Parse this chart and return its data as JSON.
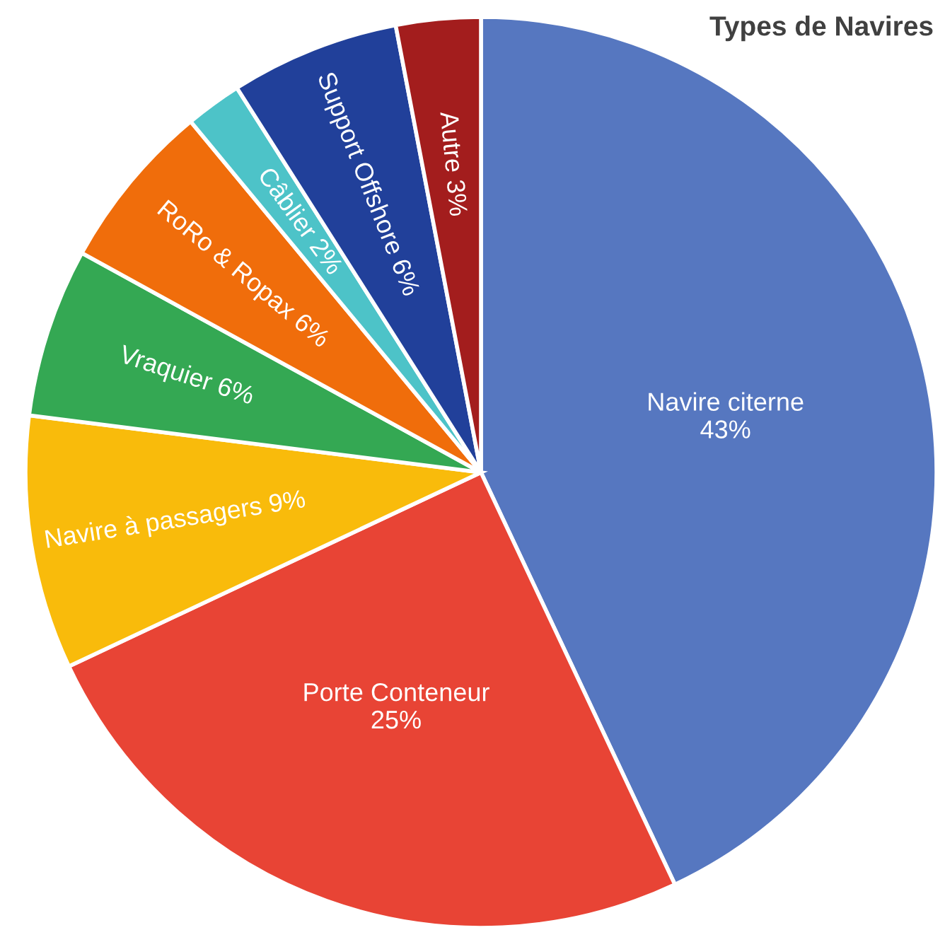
{
  "chart_data": {
    "type": "pie",
    "title": "Types de Navires",
    "categories": [
      "Navire citerne",
      "Porte Conteneur",
      "Navire à passagers",
      "Vraquier",
      "RoRo & Ropax",
      "Câblier",
      "Support Offshore",
      "Autre"
    ],
    "values": [
      43,
      25,
      9,
      6,
      6,
      2,
      6,
      3
    ],
    "colors": [
      "#5677c0",
      "#e84435",
      "#f9bb0b",
      "#34a853",
      "#f06d0b",
      "#4dc3c8",
      "#21409a",
      "#a31d1d"
    ],
    "value_labels": [
      "43%",
      "25%",
      "9%",
      "6%",
      "6%",
      "2%",
      "6%",
      "3%"
    ]
  }
}
